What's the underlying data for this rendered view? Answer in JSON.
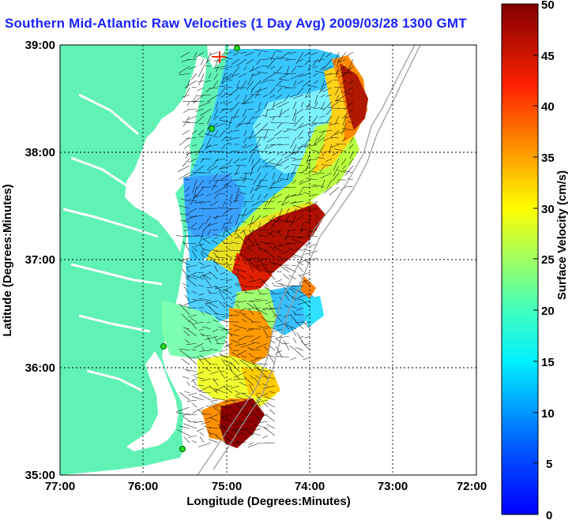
{
  "title": "Southern Mid-Atlantic Raw Velocities (1 Day Avg) 2009/03/28 1300 GMT",
  "axes": {
    "xlabel": "Longitude (Degrees:Minutes)",
    "ylabel": "Latitude (Degrees:Minutes)",
    "xticks": [
      "77:00",
      "76:00",
      "75:00",
      "74:00",
      "73:00",
      "72:00"
    ],
    "yticks": [
      "39:00",
      "38:00",
      "37:00",
      "36:00",
      "35:00"
    ]
  },
  "colorbar": {
    "label": "Surface Velocity (cm/s)",
    "min": 0,
    "max": 50,
    "ticks": [
      "50",
      "45",
      "40",
      "35",
      "30",
      "25",
      "20",
      "15",
      "10",
      "5",
      "0"
    ]
  },
  "colors": {
    "land": "#5ff2b4",
    "title": "#1a22ff",
    "grid": "#000000",
    "isobath": "#999999"
  }
}
